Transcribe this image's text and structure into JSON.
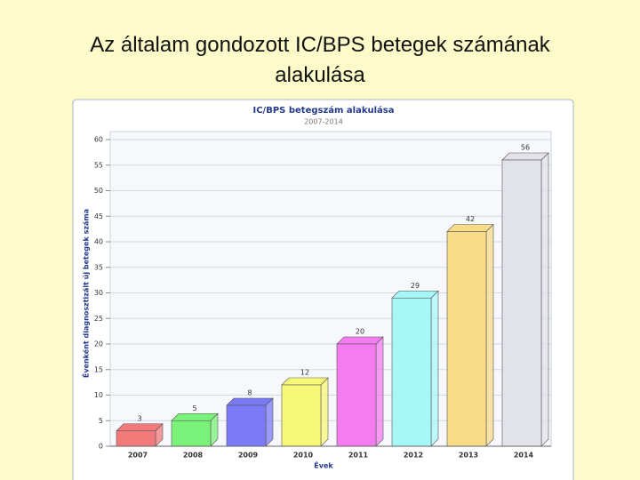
{
  "slide_title": "Az általam gondozott IC/BPS betegek számának alakulása",
  "chart_data": {
    "type": "bar",
    "title": "IC/BPS betegszám alakulása",
    "subtitle": "2007-2014",
    "x_label": "Évek",
    "y_label": "Évenként diagnosztizált új betegek száma",
    "categories": [
      "2007",
      "2008",
      "2009",
      "2010",
      "2011",
      "2012",
      "2013",
      "2014"
    ],
    "values": [
      3,
      5,
      8,
      12,
      20,
      29,
      42,
      56
    ],
    "colors": [
      "#f27a7a",
      "#7af27a",
      "#7a7af6",
      "#f8f878",
      "#f47cf0",
      "#a6f8f8",
      "#f8dc88",
      "#e2e2ea"
    ],
    "ylim": [
      0,
      60
    ],
    "yticks": [
      0,
      5,
      10,
      15,
      20,
      25,
      30,
      35,
      40,
      45,
      50,
      55,
      60
    ],
    "grid": true
  }
}
